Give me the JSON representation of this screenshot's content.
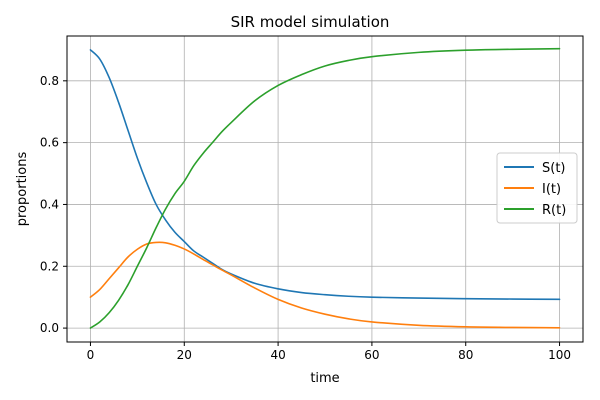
{
  "chart_data": {
    "type": "line",
    "title": "SIR model simulation",
    "xlabel": "time",
    "ylabel": "proportions",
    "xlim": [
      -5,
      105
    ],
    "ylim": [
      -0.045,
      0.945
    ],
    "xticks": [
      0,
      20,
      40,
      60,
      80,
      100
    ],
    "xtick_labels": [
      "0",
      "20",
      "40",
      "60",
      "80",
      "100"
    ],
    "yticks": [
      0.0,
      0.2,
      0.4,
      0.6,
      0.8
    ],
    "ytick_labels": [
      "0.0",
      "0.2",
      "0.4",
      "0.6",
      "0.8"
    ],
    "grid": true,
    "legend_position": "center-right",
    "x": [
      0,
      2,
      4,
      6,
      8,
      10,
      12,
      14,
      16,
      18,
      20,
      22,
      24,
      26,
      28,
      30,
      35,
      40,
      45,
      50,
      55,
      60,
      70,
      80,
      90,
      100
    ],
    "series": [
      {
        "name": "S(t)",
        "color": "#1f77b4",
        "values": [
          0.9,
          0.87,
          0.81,
          0.73,
          0.64,
          0.55,
          0.47,
          0.4,
          0.35,
          0.31,
          0.28,
          0.25,
          0.23,
          0.21,
          0.19,
          0.175,
          0.145,
          0.127,
          0.115,
          0.108,
          0.103,
          0.1,
          0.097,
          0.095,
          0.094,
          0.093
        ]
      },
      {
        "name": "I(t)",
        "color": "#ff7f0e",
        "values": [
          0.1,
          0.125,
          0.16,
          0.195,
          0.23,
          0.255,
          0.272,
          0.277,
          0.276,
          0.268,
          0.256,
          0.24,
          0.222,
          0.205,
          0.188,
          0.172,
          0.13,
          0.093,
          0.065,
          0.045,
          0.03,
          0.02,
          0.009,
          0.004,
          0.002,
          0.001
        ]
      },
      {
        "name": "R(t)",
        "color": "#2ca02c",
        "values": [
          0.0,
          0.02,
          0.05,
          0.09,
          0.14,
          0.2,
          0.26,
          0.325,
          0.385,
          0.435,
          0.475,
          0.525,
          0.565,
          0.6,
          0.635,
          0.665,
          0.735,
          0.785,
          0.82,
          0.848,
          0.866,
          0.878,
          0.892,
          0.899,
          0.902,
          0.904
        ]
      }
    ]
  }
}
